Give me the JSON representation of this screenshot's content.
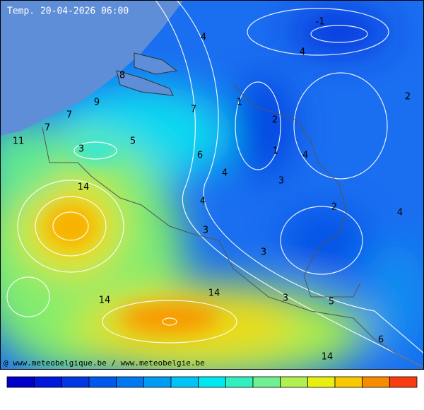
{
  "header": {
    "title": "Temp. 20-04-2026 06:00"
  },
  "footer": {
    "credit": "@ www.meteobelgique.be / www.meteobelgie.be"
  },
  "contour_labels": [
    "4",
    "-1",
    "4",
    "8",
    "9",
    "1",
    "7",
    "2",
    "7",
    "2",
    "7",
    "11",
    "5",
    "3",
    "1",
    "6",
    "4",
    "4",
    "3",
    "14",
    "4",
    "2",
    "4",
    "3",
    "3",
    "14",
    "14",
    "3",
    "5",
    "6",
    "14"
  ],
  "colorbar": {
    "colors": [
      "#0000c8",
      "#0018d8",
      "#0038e4",
      "#0058ec",
      "#0078f0",
      "#009cf4",
      "#00c4f8",
      "#00e8f0",
      "#30f0c0",
      "#70f090",
      "#b0f050",
      "#e8f010",
      "#f8c800",
      "#f88c00",
      "#f83c10"
    ]
  }
}
